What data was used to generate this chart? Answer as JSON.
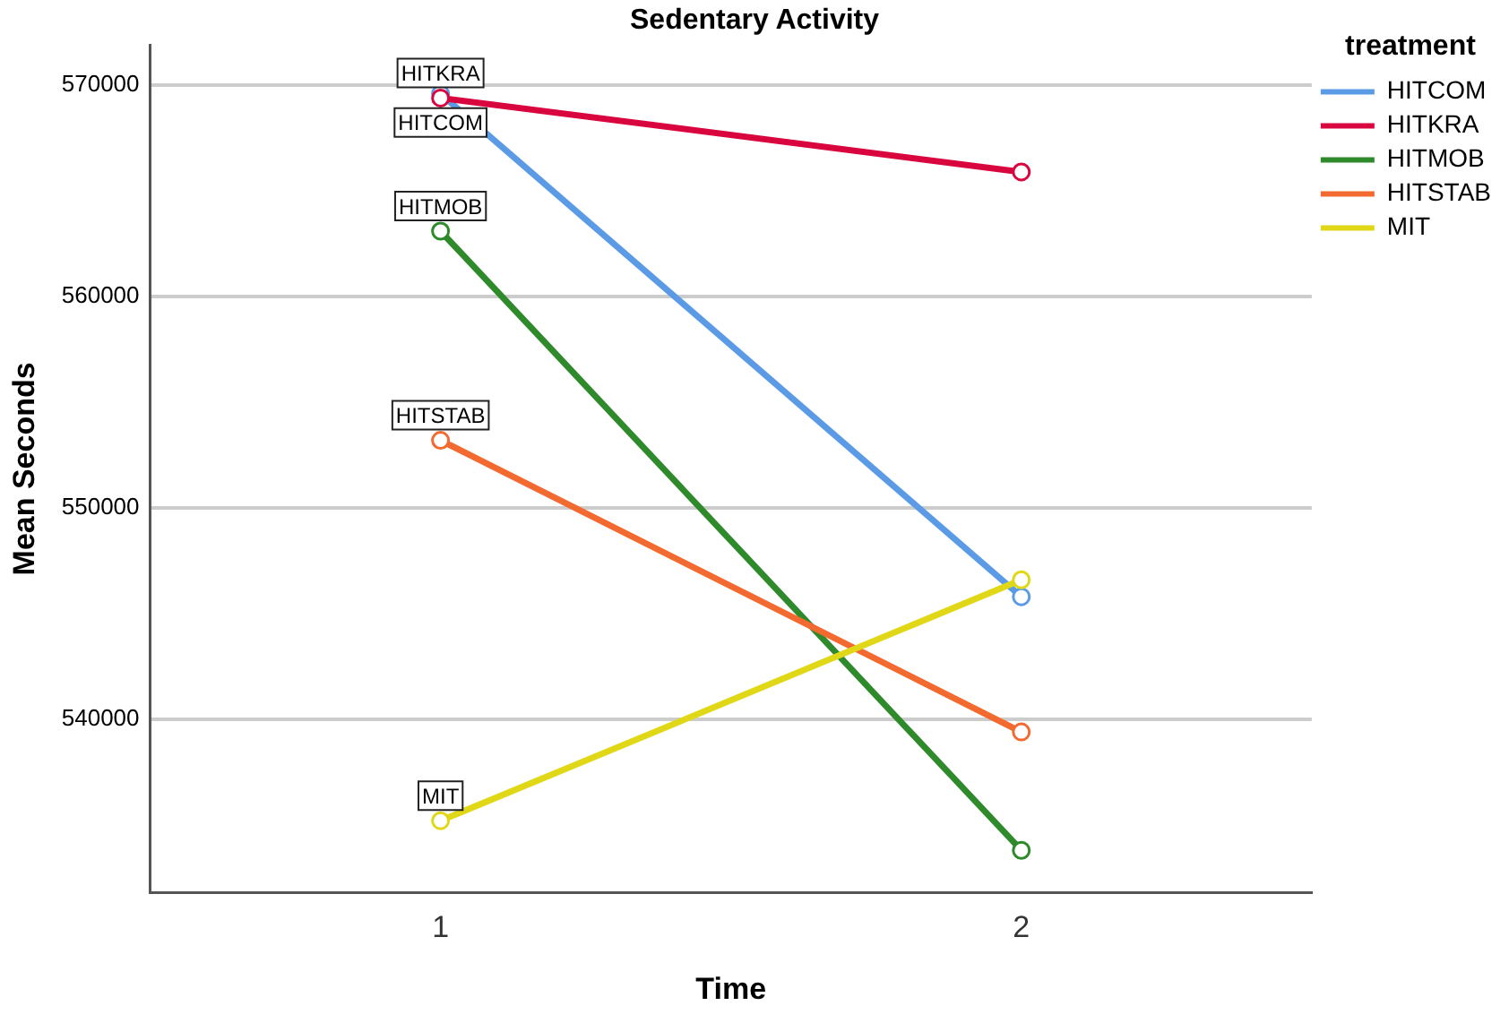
{
  "chart_data": {
    "type": "line",
    "title": "Sedentary Activity",
    "xlabel": "Time",
    "ylabel": "Mean Seconds",
    "legend_title": "treatment",
    "categories": [
      "1",
      "2"
    ],
    "series": [
      {
        "name": "HITCOM",
        "color": "#5b9be6",
        "values": [
          569600,
          545800
        ]
      },
      {
        "name": "HITKRA",
        "color": "#d9053f",
        "values": [
          569400,
          565900
        ]
      },
      {
        "name": "HITMOB",
        "color": "#2e8a2a",
        "values": [
          563100,
          533800
        ]
      },
      {
        "name": "HITSTAB",
        "color": "#f26a30",
        "values": [
          553200,
          539400
        ]
      },
      {
        "name": "MIT",
        "color": "#e0d817",
        "values": [
          535200,
          546600
        ]
      }
    ],
    "annotations": [
      {
        "text": "HITKRA",
        "x": "1",
        "y": 569400
      },
      {
        "text": "HITCOM",
        "x": "1",
        "y": 569600
      },
      {
        "text": "HITMOB",
        "x": "1",
        "y": 563100
      },
      {
        "text": "HITSTAB",
        "x": "1",
        "y": 553200
      },
      {
        "text": "MIT",
        "x": "1",
        "y": 535200
      }
    ],
    "ylim": [
      531800,
      571900
    ],
    "yticks": [
      540000,
      550000,
      560000,
      570000
    ],
    "grid": "y",
    "legend": "top right",
    "marker": "circle",
    "line_style": "solid"
  }
}
